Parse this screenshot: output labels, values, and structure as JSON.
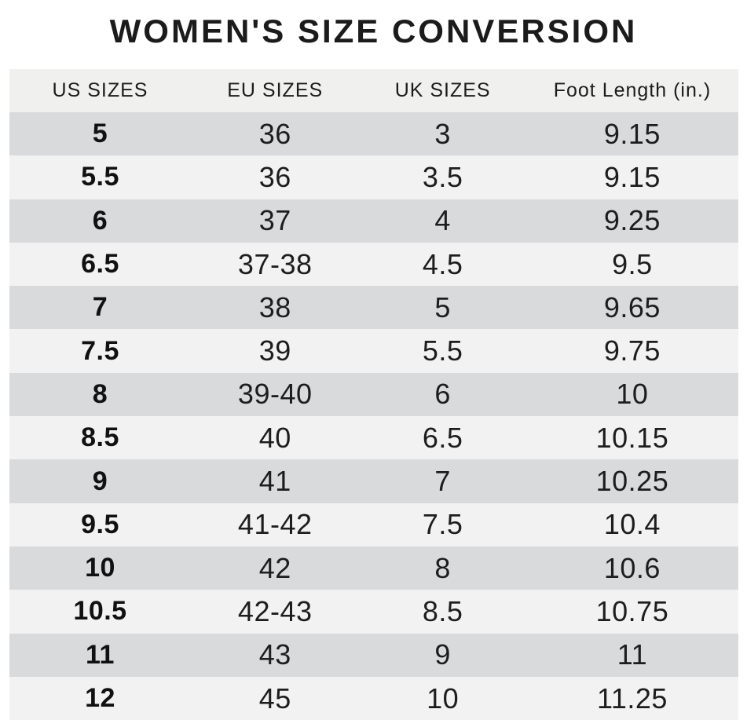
{
  "title": "WOMEN'S SIZE CONVERSION",
  "colors": {
    "row_dark": "#d9dadc",
    "row_light": "#f2f2f3",
    "header_bg": "#f0f0ee",
    "text": "#1d1d1d"
  },
  "table": {
    "headers": [
      "US SIZES",
      "EU SIZES",
      "UK SIZES",
      "Foot Length (in.)"
    ],
    "rows": [
      [
        "5",
        "36",
        "3",
        "9.15"
      ],
      [
        "5.5",
        "36",
        "3.5",
        "9.15"
      ],
      [
        "6",
        "37",
        "4",
        "9.25"
      ],
      [
        "6.5",
        "37-38",
        "4.5",
        "9.5"
      ],
      [
        "7",
        "38",
        "5",
        "9.65"
      ],
      [
        "7.5",
        "39",
        "5.5",
        "9.75"
      ],
      [
        "8",
        "39-40",
        "6",
        "10"
      ],
      [
        "8.5",
        "40",
        "6.5",
        "10.15"
      ],
      [
        "9",
        "41",
        "7",
        "10.25"
      ],
      [
        "9.5",
        "41-42",
        "7.5",
        "10.4"
      ],
      [
        "10",
        "42",
        "8",
        "10.6"
      ],
      [
        "10.5",
        "42-43",
        "8.5",
        "10.75"
      ],
      [
        "11",
        "43",
        "9",
        "11"
      ],
      [
        "12",
        "45",
        "10",
        "11.25"
      ]
    ]
  },
  "chart_data": {
    "type": "table",
    "title": "WOMEN'S SIZE CONVERSION",
    "columns": [
      "US SIZES",
      "EU SIZES",
      "UK SIZES",
      "Foot Length (in.)"
    ],
    "rows": [
      [
        "5",
        "36",
        "3",
        "9.15"
      ],
      [
        "5.5",
        "36",
        "3.5",
        "9.15"
      ],
      [
        "6",
        "37",
        "4",
        "9.25"
      ],
      [
        "6.5",
        "37-38",
        "4.5",
        "9.5"
      ],
      [
        "7",
        "38",
        "5",
        "9.65"
      ],
      [
        "7.5",
        "39",
        "5.5",
        "9.75"
      ],
      [
        "8",
        "39-40",
        "6",
        "10"
      ],
      [
        "8.5",
        "40",
        "6.5",
        "10.15"
      ],
      [
        "9",
        "41",
        "7",
        "10.25"
      ],
      [
        "9.5",
        "41-42",
        "7.5",
        "10.4"
      ],
      [
        "10",
        "42",
        "8",
        "10.6"
      ],
      [
        "10.5",
        "42-43",
        "8.5",
        "10.75"
      ],
      [
        "11",
        "43",
        "9",
        "11"
      ],
      [
        "12",
        "45",
        "10",
        "11.25"
      ]
    ]
  }
}
